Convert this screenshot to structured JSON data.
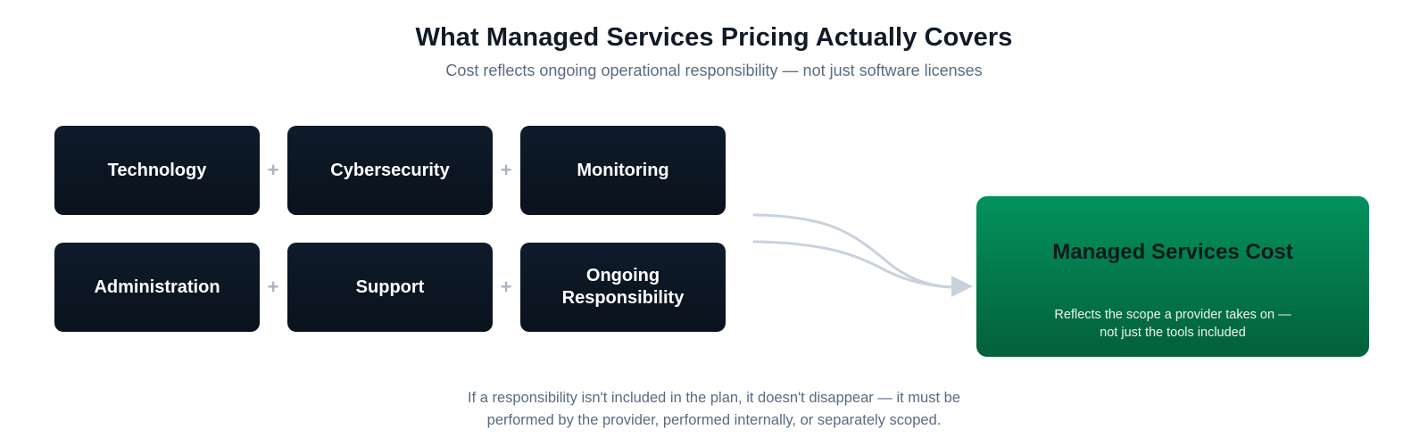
{
  "header": {
    "title": "What Managed Services Pricing Actually Covers",
    "subtitle": "Cost reflects ongoing operational responsibility — not just software licenses"
  },
  "components": [
    "Technology",
    "Cybersecurity",
    "Monitoring",
    "Administration",
    "Support",
    "Ongoing Responsibility"
  ],
  "operator": "+",
  "result": {
    "title": "Managed Services Cost",
    "description": "Reflects the scope a provider takes on — not just the tools included"
  },
  "footnote": "If a responsibility isn't included in the plan, it doesn't disappear — it must be performed by the provider, performed internally, or separately scoped.",
  "colors": {
    "component_box": "#0d1724",
    "result_box": "#03804f",
    "connector": "#c9d2dc",
    "operator": "#a9b4c1"
  }
}
